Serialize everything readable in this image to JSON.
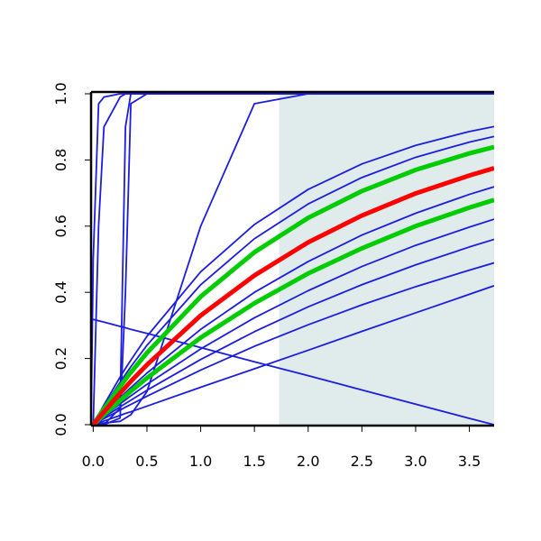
{
  "chart_data": {
    "type": "line",
    "x": [
      -0.02,
      0,
      0.05,
      0.1,
      0.25,
      0.3,
      0.35,
      0.5,
      1,
      1.5,
      2,
      2.5,
      3,
      3.5,
      3.73
    ],
    "xlim": [
      -0.02,
      3.73
    ],
    "ylim": [
      0,
      1
    ],
    "xticks": [
      {
        "value": 0,
        "label": "0.0"
      },
      0.5,
      {
        "value": 1,
        "label": "1.0"
      },
      1.5,
      {
        "value": 2,
        "label": "2.0"
      },
      2.5,
      {
        "value": 3,
        "label": "3.0"
      },
      3.5
    ],
    "yticks": [
      {
        "value": 0,
        "label": "0.0"
      },
      0.2,
      0.4,
      0.6,
      0.8,
      {
        "value": 1,
        "label": "1.0"
      }
    ],
    "shaded_region": {
      "x": [
        1.73,
        3.73
      ],
      "color": "#e0ecec"
    },
    "series": [
      {
        "color": "#1c1ce0",
        "line_width": 1.8,
        "values": [
          0,
          0.5,
          0.97,
          0.99,
          1,
          1,
          1,
          1,
          1,
          1,
          1,
          1,
          1,
          1,
          1
        ]
      },
      {
        "color": "#1c1ce0",
        "line_width": 1.8,
        "values": [
          null,
          0,
          0.6,
          0.9,
          0.99,
          1,
          1,
          1,
          1,
          1,
          1,
          1,
          1,
          1,
          1
        ]
      },
      {
        "color": "#1c1ce0",
        "line_width": 1.8,
        "values": [
          null,
          0,
          0,
          0,
          0.05,
          0.9,
          1,
          1,
          1,
          1,
          1,
          1,
          1,
          1,
          1
        ]
      },
      {
        "color": "#1c1ce0",
        "line_width": 1.8,
        "values": [
          null,
          0,
          0,
          0,
          0.02,
          0.4,
          0.97,
          1,
          1,
          1,
          1,
          1,
          1,
          1,
          1
        ]
      },
      {
        "color": "#1c1ce0",
        "line_width": 1.8,
        "values": [
          null,
          0,
          0.003,
          0.005,
          0.01,
          0.02,
          0.03,
          0.1,
          0.6,
          0.97,
          1,
          1,
          1,
          1,
          1
        ]
      },
      {
        "color": "#1c1ce0",
        "line_width": 1.8,
        "values": [
          0.32,
          0.318,
          0.314,
          0.31,
          0.297,
          0.293,
          0.288,
          0.276,
          0.233,
          0.19,
          0.148,
          0.105,
          0.062,
          0.019,
          0
        ]
      },
      {
        "color": "#1c1ce0",
        "line_width": 1.8,
        "values": [
          null,
          0,
          0.03,
          0.06,
          0.144,
          0.17,
          0.195,
          0.267,
          0.462,
          0.605,
          0.711,
          0.788,
          0.844,
          0.886,
          0.901
        ]
      },
      {
        "color": "#1c1ce0",
        "line_width": 1.8,
        "values": [
          null,
          0,
          0.027,
          0.054,
          0.128,
          0.152,
          0.175,
          0.24,
          0.423,
          0.562,
          0.667,
          0.747,
          0.808,
          0.854,
          0.871
        ]
      },
      {
        "color": "#1c1ce0",
        "line_width": 1.8,
        "values": [
          null,
          0,
          0.017,
          0.033,
          0.081,
          0.097,
          0.112,
          0.156,
          0.288,
          0.4,
          0.493,
          0.573,
          0.639,
          0.696,
          0.719
        ]
      },
      {
        "color": "#1c1ce0",
        "line_width": 1.8,
        "values": [
          null,
          0,
          0.013,
          0.026,
          0.063,
          0.075,
          0.087,
          0.122,
          0.229,
          0.323,
          0.405,
          0.478,
          0.542,
          0.597,
          0.621
        ]
      },
      {
        "color": "#1c1ce0",
        "line_width": 1.8,
        "values": [
          null,
          0,
          0.011,
          0.022,
          0.054,
          0.064,
          0.074,
          0.104,
          0.197,
          0.281,
          0.356,
          0.423,
          0.483,
          0.537,
          0.56
        ]
      },
      {
        "color": "#1c1ce0",
        "line_width": 1.8,
        "values": [
          null,
          0,
          0.009,
          0.018,
          0.044,
          0.053,
          0.061,
          0.086,
          0.165,
          0.237,
          0.302,
          0.362,
          0.417,
          0.467,
          0.489
        ]
      },
      {
        "color": "#1c1ce0",
        "line_width": 1.8,
        "values": [
          null,
          0,
          0.006,
          0.011,
          0.028,
          0.034,
          0.039,
          0.056,
          0.113,
          0.169,
          0.225,
          0.282,
          0.338,
          0.394,
          0.42
        ]
      },
      {
        "color": "#00cc00",
        "line_width": 5,
        "values": [
          null,
          0,
          0.024,
          0.048,
          0.115,
          0.137,
          0.158,
          0.217,
          0.387,
          0.521,
          0.625,
          0.706,
          0.77,
          0.82,
          0.839
        ]
      },
      {
        "color": "#00cc00",
        "line_width": 5,
        "values": [
          null,
          0,
          0.015,
          0.03,
          0.073,
          0.087,
          0.101,
          0.141,
          0.263,
          0.367,
          0.457,
          0.533,
          0.6,
          0.656,
          0.679
        ]
      },
      {
        "color": "#ff0000",
        "line_width": 5,
        "values": [
          null,
          0,
          0.02,
          0.039,
          0.095,
          0.113,
          0.131,
          0.181,
          0.33,
          0.451,
          0.551,
          0.632,
          0.699,
          0.753,
          0.775
        ]
      }
    ]
  }
}
